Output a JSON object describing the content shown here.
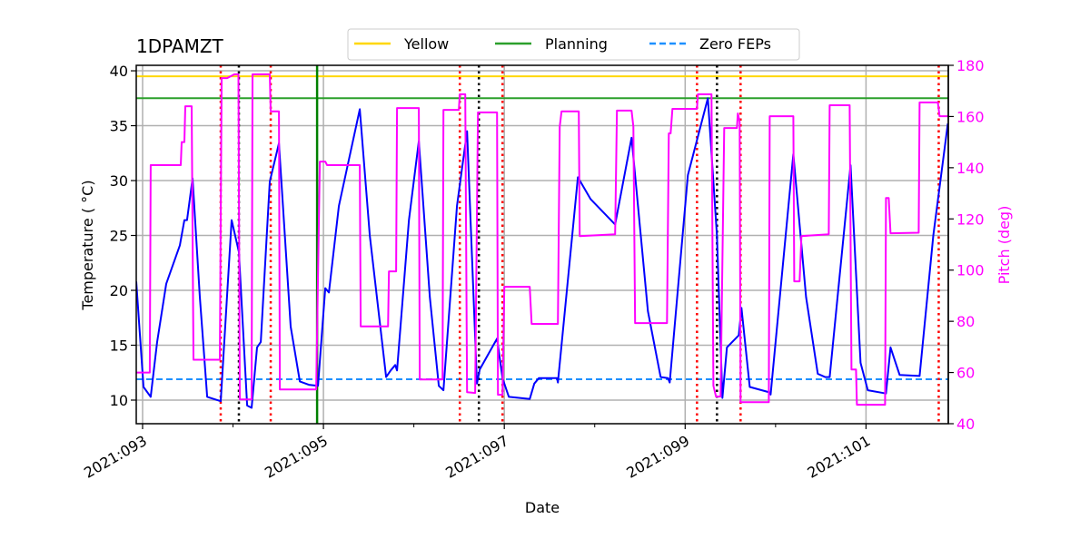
{
  "chart_data": {
    "type": "line",
    "title": "1DPAMZT",
    "xlabel": "Date",
    "ylabel": "Temperature ( °C)",
    "y2label": "Pitch (deg)",
    "xlim": [
      92.93,
      101.91
    ],
    "ylim": [
      7.85,
      40.5
    ],
    "y2lim": [
      40,
      180
    ],
    "grid": true,
    "legend_placement": "top-center",
    "x_ticks": [
      {
        "value": 93,
        "label": "2021:093"
      },
      {
        "value": 95,
        "label": "2021:095"
      },
      {
        "value": 97,
        "label": "2021:097"
      },
      {
        "value": 99,
        "label": "2021:099"
      },
      {
        "value": 101,
        "label": "2021:101"
      }
    ],
    "x_minor_ticks": [
      94,
      96,
      98,
      100
    ],
    "y_ticks": [
      10,
      15,
      20,
      25,
      30,
      35,
      40
    ],
    "y2_ticks": [
      40,
      60,
      80,
      100,
      120,
      140,
      160,
      180
    ],
    "colors": {
      "temp": "#0000ff",
      "pitch": "#ff00ff",
      "yellow": "#ffd700",
      "planning": "#2ca02c",
      "zero_feps": "#1e90ff",
      "grid": "#b0b0b0",
      "red_marker": "#ff0000",
      "black_marker": "#000000",
      "green_marker": "#008000",
      "y2_axis": "#ff00ff"
    },
    "legend": [
      {
        "label": "Yellow",
        "color": "#ffd700",
        "style": "solid"
      },
      {
        "label": "Planning",
        "color": "#2ca02c",
        "style": "solid"
      },
      {
        "label": "Zero FEPs",
        "color": "#1e90ff",
        "style": "dashed"
      }
    ],
    "hlines": [
      {
        "name": "Yellow",
        "value": 39.5
      },
      {
        "name": "Planning",
        "value": 37.5
      },
      {
        "name": "Zero FEPs",
        "value": 11.9
      }
    ],
    "vlines_red": [
      93.864,
      94.417,
      96.508,
      96.98,
      99.131,
      99.613,
      101.804
    ],
    "vlines_black": [
      94.065,
      96.719,
      99.352
    ],
    "vlines_green": [
      94.93
    ],
    "series": [
      {
        "name": "Temperature",
        "axis": "left",
        "x": [
          92.93,
          93.01,
          93.09,
          93.161,
          93.261,
          93.412,
          93.462,
          93.492,
          93.553,
          93.633,
          93.714,
          93.864,
          93.985,
          94.065,
          94.156,
          94.206,
          94.266,
          94.307,
          94.407,
          94.508,
          94.638,
          94.739,
          94.839,
          94.94,
          95.02,
          95.06,
          95.171,
          95.402,
          95.513,
          95.693,
          95.744,
          95.794,
          95.814,
          95.945,
          96.055,
          96.176,
          96.276,
          96.327,
          96.477,
          96.588,
          96.698,
          96.729,
          96.92,
          96.98,
          97.05,
          97.281,
          97.332,
          97.382,
          97.583,
          97.593,
          97.814,
          97.955,
          98.226,
          98.407,
          98.588,
          98.729,
          98.809,
          98.829,
          99.03,
          99.251,
          99.352,
          99.412,
          99.462,
          99.593,
          99.623,
          99.714,
          99.935,
          99.945,
          100.196,
          100.337,
          100.467,
          100.548,
          100.598,
          100.829,
          100.94,
          101.02,
          101.221,
          101.271,
          101.372,
          101.593,
          101.744,
          101.905
        ],
        "y": [
          20.8,
          11.2,
          10.3,
          15.3,
          20.6,
          24.1,
          26.4,
          26.4,
          30.2,
          19.4,
          10.3,
          9.9,
          26.4,
          23.5,
          9.5,
          9.3,
          14.8,
          15.3,
          29.9,
          33.4,
          16.7,
          11.7,
          11.4,
          11.3,
          20.2,
          19.8,
          27.7,
          36.5,
          25.0,
          12.1,
          12.7,
          13.2,
          12.7,
          26.4,
          33.6,
          19.4,
          11.3,
          10.9,
          27.7,
          34.5,
          11.5,
          12.8,
          15.6,
          12.0,
          10.3,
          10.1,
          11.5,
          12.0,
          12.0,
          11.6,
          30.3,
          28.3,
          26.0,
          33.9,
          18.1,
          12.1,
          12.0,
          11.6,
          30.5,
          37.5,
          25.0,
          10.2,
          14.8,
          15.9,
          18.4,
          11.2,
          10.7,
          10.5,
          32.4,
          19.4,
          12.4,
          12.1,
          12.1,
          31.4,
          13.4,
          10.9,
          10.6,
          14.8,
          12.3,
          12.2,
          25.0,
          35.2
        ]
      },
      {
        "name": "Pitch",
        "axis": "right",
        "x": [
          92.93,
          93.08,
          93.09,
          93.422,
          93.432,
          93.462,
          93.472,
          93.543,
          93.563,
          93.854,
          93.874,
          93.935,
          94.015,
          94.06,
          94.075,
          94.206,
          94.216,
          94.407,
          94.417,
          94.508,
          94.518,
          94.92,
          94.96,
          95.02,
          95.04,
          95.402,
          95.412,
          95.714,
          95.724,
          95.804,
          95.814,
          96.055,
          96.065,
          96.317,
          96.327,
          96.497,
          96.508,
          96.568,
          96.588,
          96.678,
          96.709,
          96.92,
          96.93,
          96.98,
          97.0,
          97.281,
          97.302,
          97.593,
          97.613,
          97.633,
          97.824,
          97.834,
          98.226,
          98.246,
          98.407,
          98.427,
          98.447,
          98.799,
          98.819,
          98.839,
          98.859,
          99.131,
          99.141,
          99.291,
          99.312,
          99.342,
          99.392,
          99.432,
          99.573,
          99.583,
          99.603,
          99.613,
          99.925,
          99.935,
          100.196,
          100.206,
          100.266,
          100.286,
          100.588,
          100.598,
          100.819,
          100.839,
          100.889,
          100.899,
          101.211,
          101.221,
          101.251,
          101.271,
          101.583,
          101.593,
          101.794,
          101.814,
          101.915
        ],
        "y": [
          60,
          60,
          141,
          141,
          150,
          150,
          164,
          164,
          65,
          65,
          175,
          175,
          176.5,
          176.5,
          49.5,
          49.5,
          176.5,
          176.5,
          162,
          162,
          53.4,
          53.4,
          142.4,
          142.4,
          141,
          141,
          78,
          78,
          99.5,
          99.5,
          163.3,
          163.3,
          57.3,
          57.3,
          162.6,
          162.6,
          168.7,
          168.7,
          52.3,
          52,
          161.6,
          161.6,
          51.3,
          51.3,
          93.5,
          93.5,
          79,
          79,
          156,
          162,
          162,
          113.3,
          114,
          162.3,
          162.3,
          156,
          79.3,
          79.3,
          153.4,
          153.4,
          163,
          163,
          168.7,
          168.7,
          54.8,
          50.6,
          50.6,
          155.5,
          155.5,
          161.2,
          158,
          48.4,
          48.4,
          160.1,
          160.1,
          95.6,
          95.6,
          113.3,
          114,
          164.4,
          164.4,
          61.2,
          61.2,
          47.4,
          47.4,
          128.2,
          128.2,
          114.4,
          114.6,
          165.5,
          165.5,
          160.1,
          160.1
        ]
      }
    ]
  }
}
